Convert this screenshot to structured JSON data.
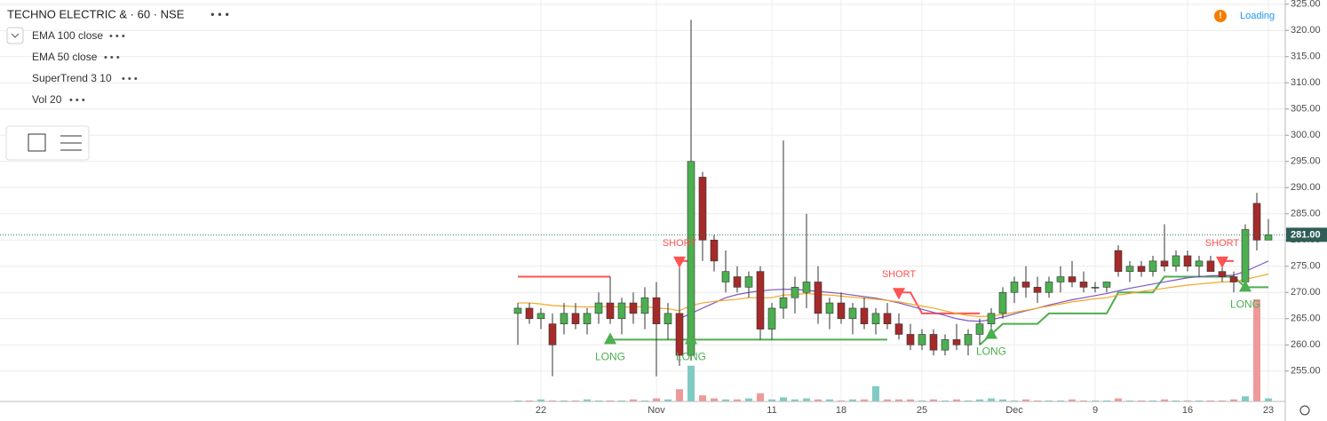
{
  "chart_data": {
    "type": "candlestick",
    "title": "TECHNO ELECTRIC & · 60 · NSE",
    "status": "Loading",
    "categories": [
      null,
      null,
      "22",
      null,
      null,
      null,
      null,
      null,
      null,
      null,
      null,
      null,
      "Nov",
      null,
      null,
      null,
      null,
      null,
      null,
      null,
      null,
      null,
      "11",
      null,
      null,
      null,
      null,
      null,
      "18",
      null,
      null,
      null,
      null,
      null,
      null,
      "25",
      null,
      null,
      null,
      null,
      null,
      null,
      null,
      "Dec",
      null,
      null,
      null,
      null,
      null,
      null,
      "9",
      null,
      null,
      null,
      null,
      null,
      null,
      null,
      "16",
      null,
      null,
      null,
      null,
      null,
      null,
      "23"
    ],
    "ohlc": {
      "up_color": "#4caf50",
      "down_color": "#a52a2a",
      "open": [
        266,
        267,
        265,
        264,
        264,
        266,
        264,
        266,
        268,
        265,
        268,
        266,
        269,
        264,
        266,
        258,
        292,
        280,
        272,
        273,
        271,
        274,
        263,
        267,
        269,
        270,
        272,
        266,
        268,
        265,
        267,
        264,
        266,
        264,
        262,
        260,
        262,
        259,
        261,
        260,
        262,
        264,
        266,
        270,
        272,
        271,
        270,
        272,
        273,
        272,
        271,
        271,
        278,
        274,
        275,
        274,
        276,
        275,
        277,
        275,
        276,
        274,
        273,
        272,
        287,
        280
      ],
      "high": [
        268,
        268,
        267,
        266,
        268,
        268,
        267,
        270,
        273,
        269,
        270,
        271,
        272,
        268,
        276,
        322,
        293,
        281,
        278,
        275,
        274,
        275,
        268,
        299,
        273,
        285,
        275,
        269,
        270,
        268,
        269,
        267,
        268,
        266,
        264,
        263,
        263,
        262,
        264,
        263,
        265,
        267,
        271,
        273,
        275,
        273,
        273,
        275,
        276,
        274,
        272,
        272,
        279,
        276,
        276,
        277,
        283,
        278,
        278,
        277,
        277,
        276,
        274,
        283,
        289,
        284
      ],
      "low": [
        260,
        264,
        263,
        254,
        262,
        263,
        262,
        264,
        264,
        262,
        264,
        263,
        254,
        261,
        256,
        257,
        276,
        274,
        270,
        270,
        269,
        261,
        261,
        265,
        266,
        267,
        264,
        263,
        264,
        262,
        263,
        262,
        263,
        261,
        259,
        259,
        258,
        258,
        259,
        258,
        260,
        262,
        265,
        268,
        269,
        268,
        269,
        270,
        271,
        270,
        270,
        270,
        273,
        272,
        273,
        273,
        274,
        274,
        274,
        273,
        274,
        272,
        270,
        271,
        278,
        280
      ],
      "close": [
        267,
        265,
        266,
        260,
        266,
        264,
        266,
        268,
        265,
        268,
        266,
        269,
        264,
        266,
        258,
        295,
        280,
        276,
        274,
        271,
        273,
        263,
        267,
        269,
        271,
        272,
        266,
        268,
        265,
        267,
        264,
        266,
        264,
        262,
        260,
        262,
        259,
        261,
        260,
        262,
        264,
        266,
        270,
        272,
        271,
        270,
        272,
        273,
        272,
        271,
        271,
        272,
        274,
        275,
        274,
        276,
        275,
        277,
        275,
        276,
        274,
        273,
        272,
        282,
        280,
        281
      ]
    },
    "series": [
      {
        "name": "EMA 100 close",
        "color": "#7e57c2",
        "values": [
          null,
          null,
          null,
          null,
          null,
          null,
          null,
          null,
          null,
          null,
          null,
          null,
          null,
          null,
          265,
          266,
          267,
          268,
          269,
          269.6,
          270,
          270.3,
          270.5,
          270.6,
          270.6,
          270.4,
          270.2,
          270,
          269.8,
          269.5,
          269.2,
          268.9,
          268.5,
          268,
          267.4,
          266.8,
          266.2,
          265.6,
          265,
          264.6,
          264.5,
          264.8,
          265.3,
          265.9,
          266.5,
          267,
          267.6,
          268.1,
          268.6,
          269,
          269.4,
          269.8,
          270.3,
          270.8,
          271.2,
          271.6,
          272,
          272.4,
          272.8,
          273,
          273.2,
          273.2,
          273.3,
          274,
          275,
          276
        ]
      },
      {
        "name": "EMA 50 close",
        "color": "#f5a623",
        "values": [
          268,
          268,
          267.8,
          267.5,
          267.4,
          267.3,
          267.2,
          267.3,
          267.3,
          267.2,
          267.2,
          267.3,
          267,
          266.9,
          266.5,
          267.5,
          268,
          268.3,
          268.5,
          268.7,
          269,
          269,
          269,
          269.5,
          269.6,
          269.8,
          269.6,
          269.5,
          269.3,
          269.1,
          268.9,
          268.7,
          268.5,
          268.2,
          267.8,
          267.4,
          267,
          266.5,
          266,
          265.6,
          265.4,
          265.5,
          265.8,
          266.2,
          266.6,
          267,
          267.4,
          267.8,
          268.2,
          268.5,
          268.8,
          269,
          269.5,
          269.8,
          270.2,
          270.5,
          270.8,
          271.1,
          271.4,
          271.6,
          271.8,
          272,
          272,
          272.5,
          273,
          273.5
        ]
      }
    ],
    "supertrend": {
      "name": "SuperTrend 3 10",
      "up_color": "#4caf50",
      "down_color": "#ff5252",
      "down": [
        273,
        273,
        273,
        273,
        273,
        273,
        273,
        273,
        273,
        null,
        null,
        null,
        null,
        null,
        276,
        276,
        null,
        null,
        null,
        null,
        null,
        null,
        null,
        null,
        null,
        null,
        null,
        null,
        null,
        null,
        null,
        null,
        null,
        270,
        270,
        266,
        266,
        266,
        266,
        266,
        266,
        null,
        null,
        null,
        null,
        null,
        null,
        null,
        null,
        null,
        null,
        null,
        null,
        null,
        null,
        null,
        null,
        null,
        null,
        null,
        null,
        276,
        276,
        null,
        null,
        null
      ],
      "up": [
        null,
        null,
        null,
        null,
        null,
        null,
        null,
        null,
        261,
        261,
        261,
        261,
        261,
        261,
        261,
        261,
        261,
        261,
        261,
        261,
        261,
        261,
        261,
        261,
        261,
        261,
        261,
        261,
        261,
        261,
        261,
        261,
        261,
        null,
        null,
        null,
        null,
        null,
        null,
        null,
        260,
        262,
        264,
        264,
        264,
        264,
        266,
        266,
        266,
        266,
        266,
        266,
        270,
        270,
        270,
        270,
        273,
        273,
        273,
        273,
        273,
        273,
        273,
        271,
        271,
        271
      ]
    },
    "signals": [
      null,
      null,
      null,
      null,
      null,
      null,
      null,
      null,
      "LONG",
      null,
      null,
      null,
      null,
      null,
      "SHORT",
      "LONG",
      null,
      null,
      null,
      null,
      null,
      null,
      null,
      null,
      null,
      null,
      null,
      null,
      null,
      null,
      null,
      null,
      null,
      "SHORT",
      null,
      null,
      null,
      null,
      null,
      null,
      null,
      "LONG",
      null,
      null,
      null,
      null,
      null,
      null,
      null,
      null,
      null,
      null,
      null,
      null,
      null,
      null,
      null,
      null,
      null,
      null,
      null,
      "SHORT",
      null,
      "LONG",
      null,
      null
    ],
    "volume": {
      "name": "Vol 20",
      "up_color": "#80cbc4",
      "down_color": "#ef9a9a",
      "values": [
        1,
        1,
        2,
        1,
        1,
        1,
        2,
        1,
        1,
        1,
        2,
        1,
        3,
        2,
        12,
        35,
        6,
        3,
        2,
        2,
        3,
        8,
        2,
        4,
        2,
        3,
        2,
        2,
        1,
        2,
        2,
        15,
        2,
        2,
        2,
        1,
        2,
        1,
        2,
        1,
        2,
        3,
        2,
        1,
        2,
        1,
        1,
        1,
        2,
        1,
        1,
        1,
        3,
        1,
        1,
        1,
        2,
        1,
        1,
        1,
        1,
        1,
        2,
        5,
        100,
        3
      ]
    },
    "last_price": {
      "value": 281,
      "label": "281.00"
    },
    "ylim": [
      249.2,
      325.8
    ],
    "yticks": [
      {
        "value": 255,
        "label": "255.00"
      },
      {
        "value": 260,
        "label": "260.00"
      },
      {
        "value": 265,
        "label": "265.00"
      },
      {
        "value": 270,
        "label": "270.00"
      },
      {
        "value": 275,
        "label": "275.00"
      },
      {
        "value": 280,
        "label": "280.00"
      },
      {
        "value": 285,
        "label": "285.00"
      },
      {
        "value": 290,
        "label": "290.00"
      },
      {
        "value": 295,
        "label": "295.00"
      },
      {
        "value": 300,
        "label": "300.00"
      },
      {
        "value": 305,
        "label": "305.00"
      },
      {
        "value": 310,
        "label": "310.00"
      },
      {
        "value": 315,
        "label": "315.00"
      },
      {
        "value": 320,
        "label": "320.00"
      },
      {
        "value": 325,
        "label": "325.00"
      }
    ],
    "grid": true
  }
}
